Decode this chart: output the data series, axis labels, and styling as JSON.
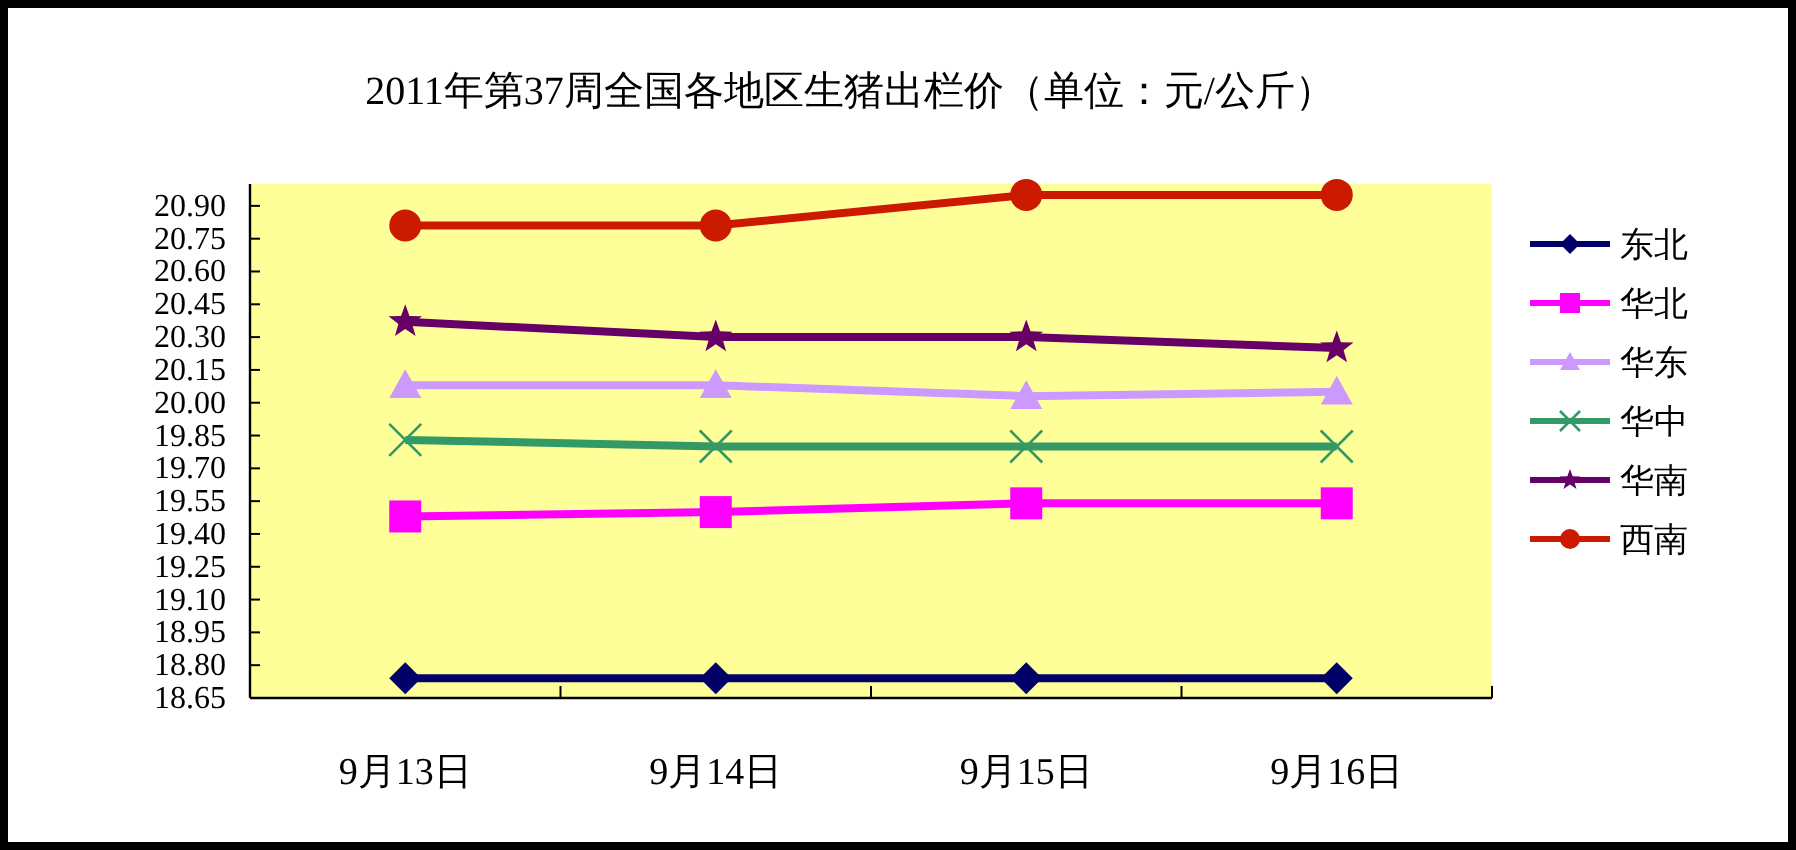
{
  "chart_data": {
    "type": "line",
    "title": "2011年第37周全国各地区生猪出栏价（单位：元/公斤）",
    "categories": [
      "9月13日",
      "9月14日",
      "9月15日",
      "9月16日"
    ],
    "ylim": [
      18.65,
      21.0
    ],
    "yticks": [
      {
        "value": 18.65,
        "label": "18.65"
      },
      {
        "value": 18.8,
        "label": "18.80"
      },
      18.95,
      {
        "value": 19.1,
        "label": "19.10"
      },
      19.25,
      {
        "value": 19.4,
        "label": "19.40"
      },
      19.55,
      {
        "value": 19.7,
        "label": "19.70"
      },
      19.85,
      {
        "value": 20,
        "label": "20.00"
      },
      20.15,
      {
        "value": 20.3,
        "label": "20.30"
      },
      20.45,
      {
        "value": 20.6,
        "label": "20.60"
      },
      20.75,
      {
        "value": 20.9,
        "label": "20.90"
      }
    ],
    "grid": false,
    "legend": "right",
    "line_style": "solid",
    "series": [
      {
        "name": "东北",
        "color": "#000066",
        "marker": "diamond",
        "values": [
          18.74,
          18.74,
          18.74,
          18.74
        ]
      },
      {
        "name": "华北",
        "color": "#ff00ff",
        "marker": "square",
        "values": [
          19.48,
          19.5,
          19.54,
          19.54
        ]
      },
      {
        "name": "华东",
        "color": "#cc99ff",
        "marker": "triangle",
        "values": [
          20.08,
          20.08,
          20.03,
          20.05
        ]
      },
      {
        "name": "华中",
        "color": "#339966",
        "marker": "cross",
        "values": [
          19.83,
          19.8,
          19.8,
          19.8
        ]
      },
      {
        "name": "华南",
        "color": "#660066",
        "marker": "star",
        "values": [
          20.37,
          20.3,
          20.3,
          20.25
        ]
      },
      {
        "name": "西南",
        "color": "#cc1a00",
        "marker": "circle",
        "values": [
          20.81,
          20.81,
          20.95,
          20.95
        ]
      }
    ]
  }
}
